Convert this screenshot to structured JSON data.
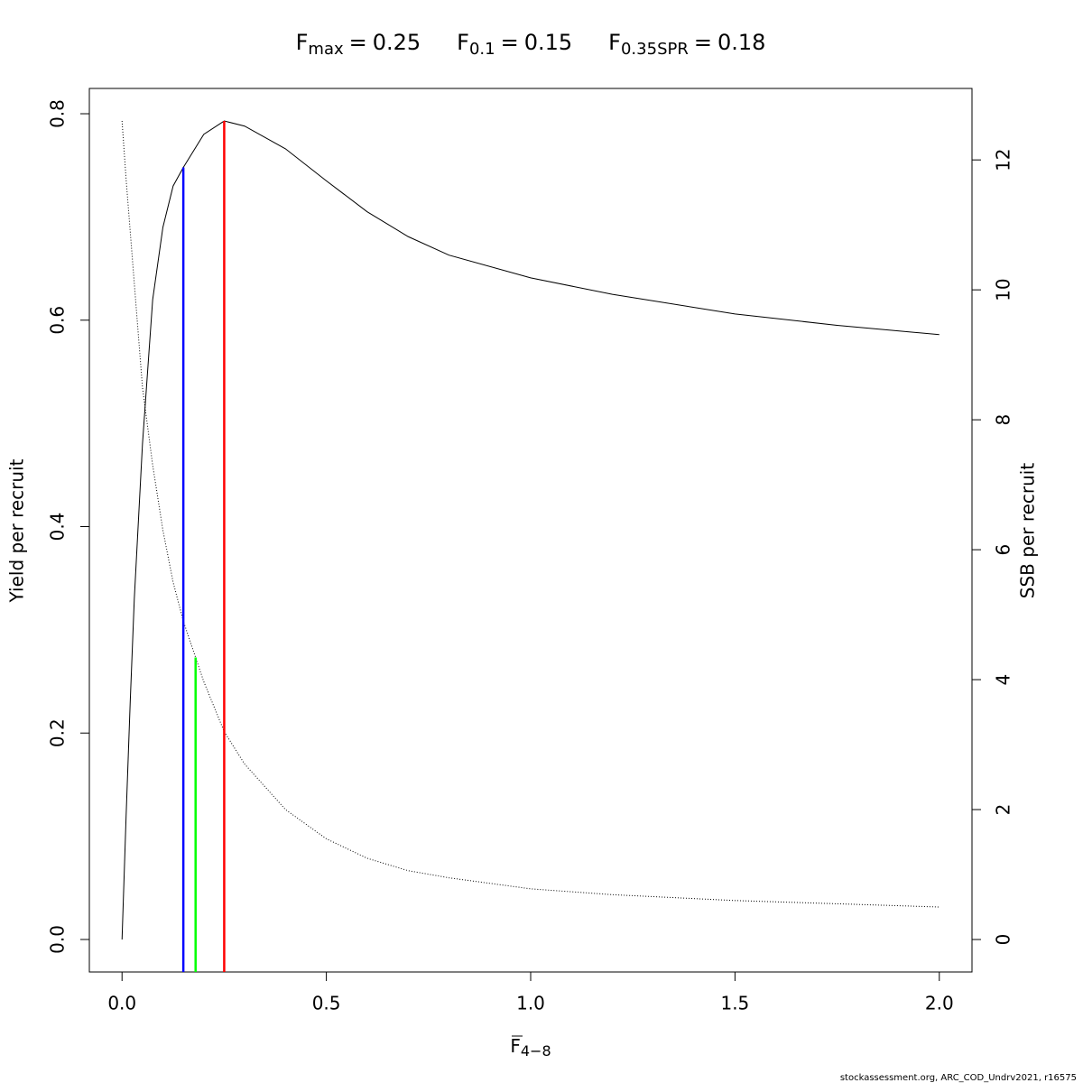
{
  "chart_data": {
    "type": "line",
    "title_parts": [
      {
        "symbol": "F",
        "subscript": "max",
        "separator": "=",
        "value": 0.25,
        "color": "#ff0000",
        "axis": "y"
      },
      {
        "symbol": "F",
        "subscript": "0.1",
        "separator": "=",
        "value": 0.15,
        "color": "#0000ff",
        "axis": "y"
      },
      {
        "symbol": "F",
        "subscript": "0.35SPR",
        "separator": "=",
        "value": 0.18,
        "color": "#00ff00",
        "axis": "y2"
      }
    ],
    "xlabel": {
      "symbol": "F",
      "subscript": "4−8"
    },
    "ylabel": "Yield per recruit",
    "y2label": "SSB per recruit",
    "footer": "stockassessment.org, ARC_COD_Undrv2021, r16575",
    "x": [
      0,
      0.01,
      0.02,
      0.03,
      0.05,
      0.075,
      0.1,
      0.125,
      0.15,
      0.2,
      0.25,
      0.3,
      0.4,
      0.5,
      0.6,
      0.7,
      0.8,
      1.0,
      1.2,
      1.5,
      1.75,
      2.0
    ],
    "series": [
      {
        "name": "Yield per recruit",
        "color": "#000000",
        "dash": "solid",
        "axis": "y",
        "values": [
          0,
          0.12,
          0.23,
          0.33,
          0.48,
          0.62,
          0.69,
          0.73,
          0.748,
          0.78,
          0.793,
          0.788,
          0.766,
          0.735,
          0.705,
          0.681,
          0.663,
          0.641,
          0.625,
          0.606,
          0.595,
          0.586
        ]
      },
      {
        "name": "SSB per recruit",
        "color": "#000000",
        "dash": "dotted",
        "axis": "y2",
        "values": [
          12.6,
          11.7,
          10.9,
          10.1,
          8.5,
          7.3,
          6.3,
          5.5,
          4.9,
          3.97,
          3.2,
          2.7,
          2.0,
          1.55,
          1.25,
          1.06,
          0.95,
          0.78,
          0.69,
          0.6,
          0.55,
          0.5
        ]
      }
    ],
    "xlim": [
      -0.08,
      2.08
    ],
    "ylim": [
      -0.0315,
      0.8245
    ],
    "y2lim": [
      -0.5,
      13.1
    ],
    "xticks": [
      {
        "value": 0,
        "label": "0.0"
      },
      {
        "value": 0.5,
        "label": "0.5"
      },
      {
        "value": 1,
        "label": "1.0"
      },
      {
        "value": 1.5,
        "label": "1.5"
      },
      {
        "value": 2,
        "label": "2.0"
      }
    ],
    "yticks": [
      {
        "value": 0,
        "label": "0.0"
      },
      {
        "value": 0.2,
        "label": "0.2"
      },
      {
        "value": 0.4,
        "label": "0.4"
      },
      {
        "value": 0.6,
        "label": "0.6"
      },
      {
        "value": 0.8,
        "label": "0.8"
      }
    ],
    "y2ticks": [
      0,
      2,
      4,
      6,
      8,
      10,
      12
    ]
  }
}
